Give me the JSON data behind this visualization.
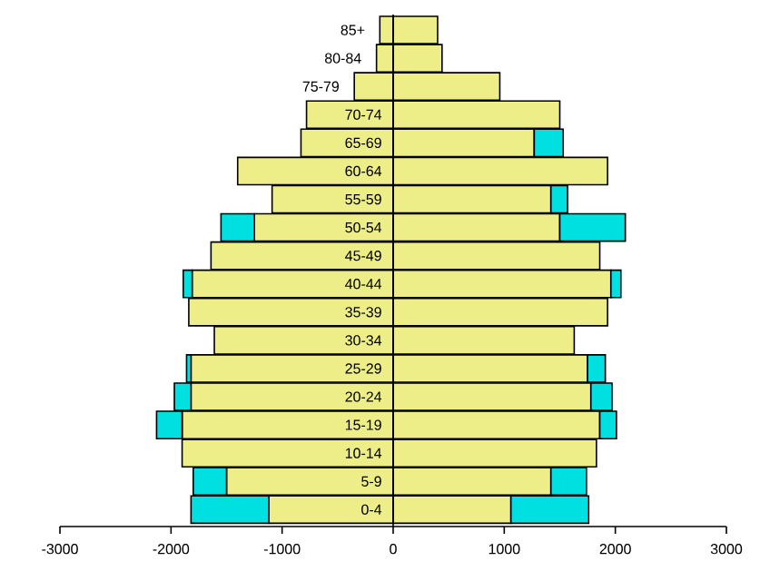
{
  "chart_data": {
    "type": "bar",
    "orientation": "horizontal",
    "stacked": true,
    "categories": [
      "85+",
      "80-84",
      "75-79",
      "70-74",
      "65-69",
      "60-64",
      "55-59",
      "50-54",
      "45-49",
      "40-44",
      "35-39",
      "30-34",
      "25-29",
      "20-24",
      "15-19",
      "10-14",
      "5-9",
      "0-4"
    ],
    "series": [
      {
        "color": "#eeee88",
        "values": [
          -120,
          -150,
          -350,
          -780,
          -830,
          -1400,
          -1090,
          -1250,
          -1640,
          -1810,
          -1840,
          -1610,
          -1820,
          -1820,
          -1900,
          -1900,
          -1500,
          -1120
        ]
      },
      {
        "color": "#eeee88",
        "values": [
          400,
          440,
          960,
          1500,
          1270,
          1930,
          1420,
          1500,
          1860,
          1960,
          1930,
          1630,
          1750,
          1780,
          1860,
          1830,
          1420,
          1060
        ]
      },
      {
        "color": "#00e0e0",
        "values": [
          null,
          null,
          null,
          null,
          null,
          null,
          null,
          -300,
          null,
          -80,
          null,
          null,
          -40,
          -150,
          -230,
          null,
          -300,
          -700
        ]
      },
      {
        "color": "#00e0e0",
        "values": [
          null,
          null,
          null,
          null,
          260,
          null,
          150,
          590,
          null,
          90,
          null,
          null,
          160,
          190,
          150,
          null,
          320,
          700
        ]
      }
    ],
    "xlim": [
      -3000,
      3000
    ],
    "xticks": [
      -3000,
      -2000,
      -1000,
      0,
      1000,
      2000,
      3000
    ]
  }
}
